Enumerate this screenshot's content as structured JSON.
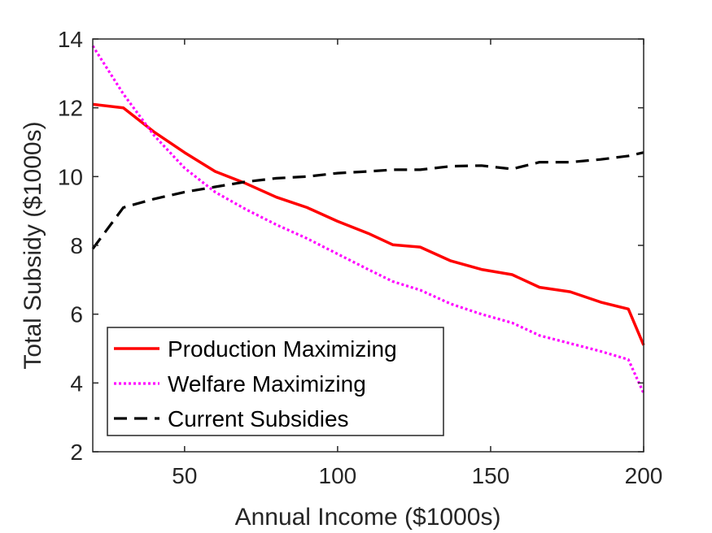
{
  "chart_data": {
    "type": "line",
    "xlabel": "Annual Income ($1000s)",
    "ylabel": "Total Subsidy ($1000s)",
    "xlim": [
      20,
      200
    ],
    "ylim": [
      2,
      14
    ],
    "xticks": [
      50,
      100,
      150,
      200
    ],
    "yticks": [
      2,
      4,
      6,
      8,
      10,
      12,
      14
    ],
    "grid": false,
    "legend_position": "bottom-left",
    "series": [
      {
        "name": "Production Maximizing",
        "color": "#ff0000",
        "style": "solid",
        "x": [
          20,
          30,
          40,
          50,
          60,
          70,
          80,
          90,
          100,
          110,
          118,
          127,
          137,
          147,
          157,
          166,
          176,
          186,
          195,
          200
        ],
        "y": [
          12.1,
          12.0,
          11.3,
          10.7,
          10.15,
          9.8,
          9.4,
          9.1,
          8.7,
          8.35,
          8.02,
          7.95,
          7.55,
          7.3,
          7.15,
          6.78,
          6.65,
          6.35,
          6.15,
          5.1
        ]
      },
      {
        "name": "Welfare Maximizing",
        "color": "#ff00ff",
        "style": "dotted",
        "x": [
          20,
          30,
          40,
          50,
          60,
          70,
          80,
          90,
          100,
          110,
          118,
          127,
          137,
          147,
          157,
          166,
          176,
          186,
          195,
          200
        ],
        "y": [
          13.8,
          12.4,
          11.2,
          10.25,
          9.55,
          9.05,
          8.6,
          8.2,
          7.75,
          7.3,
          6.95,
          6.7,
          6.3,
          6.0,
          5.75,
          5.38,
          5.15,
          4.92,
          4.68,
          3.7
        ]
      },
      {
        "name": "Current Subsidies",
        "color": "#000000",
        "style": "dashed",
        "x": [
          20,
          30,
          40,
          50,
          60,
          70,
          80,
          90,
          100,
          110,
          118,
          127,
          137,
          147,
          157,
          166,
          176,
          186,
          195,
          200
        ],
        "y": [
          7.9,
          9.1,
          9.35,
          9.55,
          9.7,
          9.85,
          9.95,
          10.0,
          10.1,
          10.15,
          10.2,
          10.2,
          10.3,
          10.32,
          10.22,
          10.42,
          10.42,
          10.5,
          10.6,
          10.7
        ]
      }
    ]
  }
}
